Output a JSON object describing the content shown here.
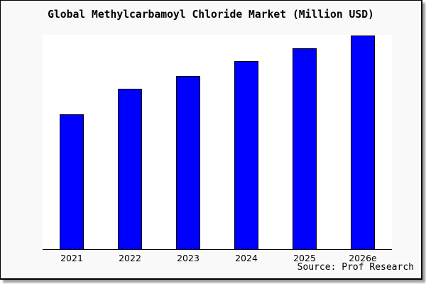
{
  "card": {
    "title": "Global Methylcarbamoyl Chloride Market (Million USD)",
    "source_label": "Source: Prof Research"
  },
  "colors": {
    "figure_background": "#f9f9f9",
    "plot_background": "#ffffff",
    "bar_fill": "#0000ff",
    "bar_border": "#000000",
    "axis": "#000000",
    "text": "#000000",
    "card_border": "#000000",
    "shadow": "#9a9a9a"
  },
  "chart_data": {
    "type": "bar",
    "title": "Global Methylcarbamoyl Chloride Market (Million USD)",
    "categories": [
      "2021",
      "2022",
      "2023",
      "2024",
      "2025",
      "2026e"
    ],
    "values": [
      63,
      75,
      81,
      88,
      94,
      100
    ],
    "values_are_relative_percent_of_max": true,
    "xlabel": "",
    "ylabel": "",
    "ylim": [
      0,
      100.3
    ],
    "y_axis_ticks_shown": false,
    "grid": false,
    "legend": false,
    "bar_color": "#0000ff",
    "source": "Source: Prof Research"
  }
}
